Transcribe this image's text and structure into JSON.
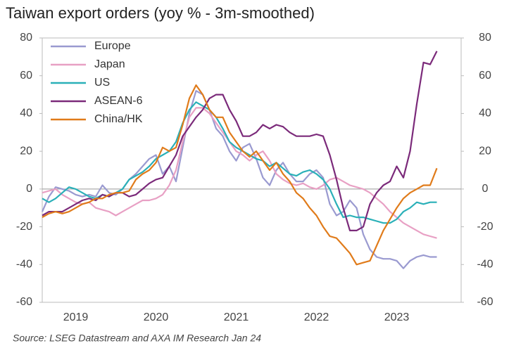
{
  "chart_data": {
    "type": "line",
    "title": "Taiwan export orders (yoy % - 3m-smoothed)",
    "source": "Source: LSEG Datastream and AXA IM Research Jan 24",
    "categories": [
      null,
      null,
      null,
      null,
      null,
      "2019",
      null,
      null,
      null,
      null,
      null,
      null,
      null,
      null,
      null,
      null,
      null,
      "2020",
      null,
      null,
      null,
      null,
      null,
      null,
      null,
      null,
      null,
      null,
      null,
      "2021",
      null,
      null,
      null,
      null,
      null,
      null,
      null,
      null,
      null,
      null,
      null,
      "2022",
      null,
      null,
      null,
      null,
      null,
      null,
      null,
      null,
      null,
      null,
      null,
      "2023",
      null,
      null,
      null,
      null,
      null,
      null
    ],
    "series": [
      {
        "name": "Europe",
        "color": "#9a9ad0",
        "values": [
          -12,
          -4,
          1,
          0,
          -1,
          -3,
          -4,
          -3,
          -4,
          2,
          -2,
          -3,
          0,
          5,
          8,
          12,
          16,
          18,
          8,
          12,
          4,
          22,
          40,
          52,
          50,
          42,
          32,
          28,
          20,
          15,
          22,
          24,
          16,
          6,
          2,
          10,
          14,
          8,
          4,
          4,
          8,
          10,
          6,
          -8,
          -14,
          -12,
          -6,
          -10,
          -24,
          -32,
          -36,
          -37,
          -37,
          -38,
          -42,
          -38,
          -36,
          -35,
          -36,
          -36
        ]
      },
      {
        "name": "Japan",
        "color": "#e8a0c4",
        "values": [
          -2,
          -1,
          0,
          -3,
          -5,
          -7,
          -8,
          -7,
          -10,
          -11,
          -12,
          -14,
          -12,
          -10,
          -8,
          -6,
          -6,
          -5,
          -3,
          2,
          10,
          25,
          38,
          43,
          43,
          40,
          35,
          30,
          25,
          20,
          18,
          15,
          18,
          20,
          15,
          8,
          5,
          3,
          2,
          3,
          1,
          0,
          2,
          5,
          6,
          4,
          2,
          1,
          0,
          -2,
          -5,
          -8,
          -12,
          -15,
          -18,
          -20,
          -22,
          -24,
          -25,
          -26
        ]
      },
      {
        "name": "US",
        "color": "#2ab0b8",
        "values": [
          -5,
          -7,
          -5,
          -2,
          1,
          0,
          -2,
          -4,
          -5,
          -3,
          -4,
          -2,
          0,
          5,
          7,
          9,
          12,
          16,
          18,
          20,
          25,
          35,
          42,
          46,
          44,
          42,
          38,
          32,
          25,
          22,
          20,
          18,
          16,
          15,
          12,
          14,
          11,
          8,
          7,
          9,
          10,
          8,
          5,
          0,
          -8,
          -15,
          -14,
          -15,
          -15,
          -16,
          -17,
          -18,
          -18,
          -16,
          -12,
          -10,
          -7,
          -8,
          -7,
          -7
        ]
      },
      {
        "name": "ASEAN-6",
        "color": "#7b2a7a",
        "values": [
          -14,
          -12,
          -12,
          -12,
          -10,
          -8,
          -6,
          -5,
          -6,
          -3,
          -4,
          -2,
          -2,
          -4,
          -3,
          0,
          3,
          5,
          6,
          12,
          18,
          28,
          33,
          38,
          42,
          48,
          50,
          50,
          42,
          36,
          28,
          28,
          30,
          34,
          32,
          34,
          33,
          30,
          28,
          28,
          28,
          29,
          28,
          18,
          5,
          -10,
          -22,
          -22,
          -20,
          -8,
          -2,
          2,
          4,
          12,
          6,
          20,
          45,
          67,
          66,
          73
        ]
      },
      {
        "name": "China/HK",
        "color": "#e07b1a",
        "values": [
          -15,
          -13,
          -12,
          -13,
          -12,
          -10,
          -8,
          -7,
          -5,
          -5,
          -3,
          -2,
          -2,
          -1,
          5,
          8,
          10,
          14,
          22,
          20,
          22,
          34,
          48,
          55,
          50,
          42,
          38,
          38,
          30,
          25,
          20,
          17,
          20,
          15,
          10,
          14,
          8,
          4,
          -2,
          -5,
          -10,
          -14,
          -20,
          -25,
          -26,
          -30,
          -34,
          -40,
          -39,
          -38,
          -30,
          -22,
          -16,
          -10,
          -5,
          -2,
          0,
          2,
          2,
          11
        ]
      }
    ],
    "ylim": [
      -60,
      80
    ],
    "yticks": [
      -60,
      -40,
      -20,
      0,
      20,
      40,
      60,
      80
    ],
    "y2lim": [
      -60,
      80
    ],
    "y2ticks": [
      -60,
      -40,
      -20,
      0,
      20,
      40,
      60,
      80
    ],
    "legend": "top-left"
  }
}
